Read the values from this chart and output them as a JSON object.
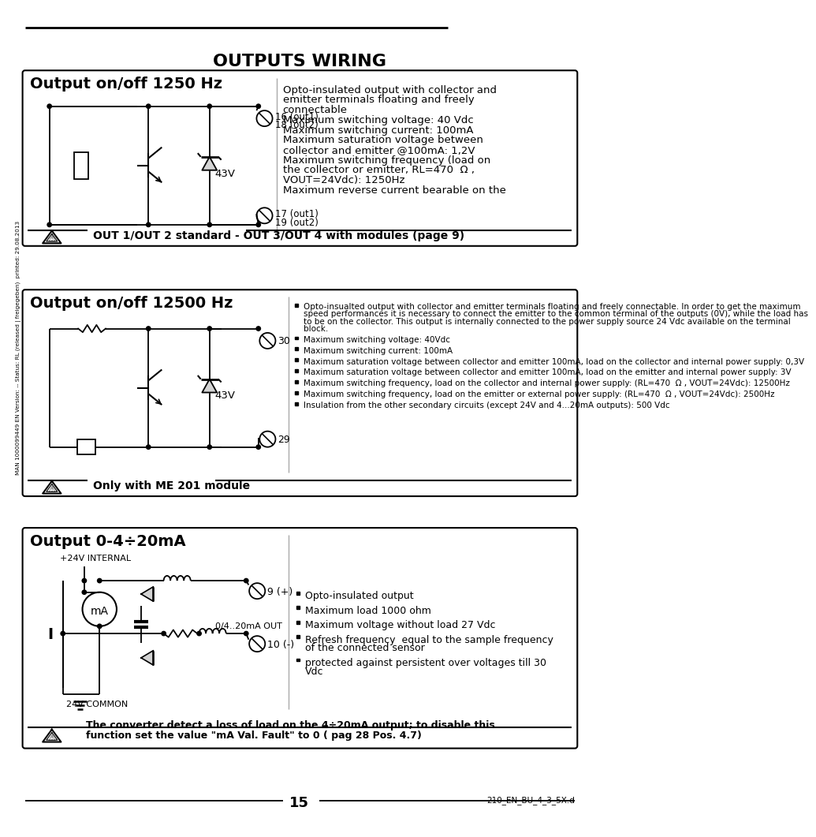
{
  "title": "OUTPUTS WIRING",
  "page_number": "15",
  "doc_ref": "210_EN_BU_4_3_5X.d",
  "watermark_text": "MAN 1000099449 EN Version: -- Status: RL (released | freigegeben)  printed: 29.08.2013",
  "section1_title": "Output on/off 1250 Hz",
  "section2_title": "Output on/off 12500 Hz",
  "section3_title": "Output 0-4÷20mA",
  "section1_desc": [
    "Opto-insulated output with collector and",
    "emitter terminals floating and freely",
    "connectable",
    "Maximum switching voltage: 40 Vdc",
    "Maximum switching current: 100mA",
    "Maximum saturation voltage between",
    "collector and emitter @100mA: 1,2V",
    "Maximum switching frequency (load on",
    "the collector or emitter, RL=470  Ω ,",
    "VOUT=24Vdc): 1250Hz",
    "Maximum reverse current bearable on the"
  ],
  "section1_note": "OUT 1/OUT 2 standard - OUT 3/OUT 4 with modules (page 9)",
  "section2_bullets": [
    [
      "Opto-insualted output with collector and emitter terminals floating and freely connectable. In order to get the maximum",
      "speed performances it is necessary to connect the emitter to the common terminal of the outputs (0V), while the load has",
      "to be on the collector. This output is internally connected to the power supply source 24 Vdc available on the terminal",
      "block."
    ],
    [
      "Maximum switching voltage: 40Vdc"
    ],
    [
      "Maximum switching current: 100mA"
    ],
    [
      "Maximum saturation voltage between collector and emitter 100mA, load on the collector and internal power supply: 0,3V"
    ],
    [
      "Maximum saturation voltage between collector and emitter 100mA, load on the emitter and internal power supply: 3V"
    ],
    [
      "Maximum switching frequency, load on the collector and internal power supply: (RL=470  Ω , VOUT=24Vdc): 12500Hz"
    ],
    [
      "Maximum switching frequency, load on the emitter or external power supply: (RL=470  Ω , VOUT=24Vdc): 2500Hz"
    ],
    [
      "Insulation from the other secondary circuits (except 24V and 4...20mA outputs): 500 Vdc"
    ]
  ],
  "section2_note": "Only with ME 201 module",
  "section3_bullets": [
    [
      "Opto-insulated output"
    ],
    [
      "Maximum load 1000 ohm"
    ],
    [
      "Maximum voltage without load 27 Vdc"
    ],
    [
      "Refresh frequency  equal to the sample frequency",
      "of the connected sensor"
    ],
    [
      "protected against persistent over voltages till 30",
      "Vdc"
    ]
  ],
  "section3_note_bold": "The converter detect a loss of load on the 4÷20mA output; to disable this",
  "section3_note_bold2": "function set the value \"mA Val. Fault\" to 0 ( pag 28 Pos. 4.7)",
  "bg_color": "#ffffff",
  "text_color": "#000000"
}
